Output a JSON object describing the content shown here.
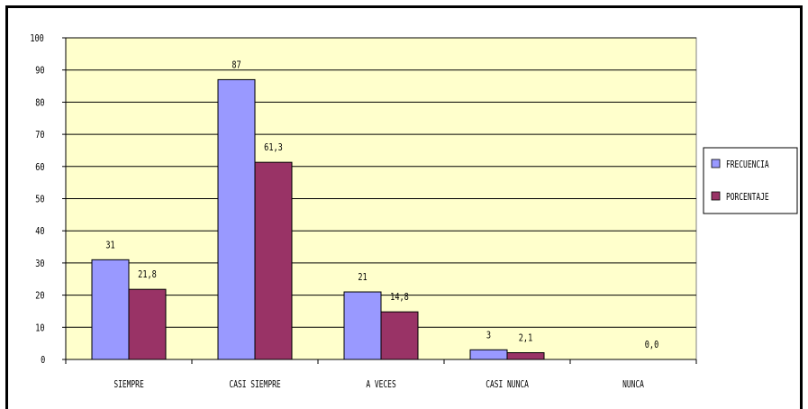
{
  "chart_data": {
    "type": "bar",
    "categories": [
      "SIEMPRE",
      "CASI SIEMPRE",
      "A VECES",
      "CASI NUNCA",
      "NUNCA"
    ],
    "series": [
      {
        "name": "FRECUENCIA",
        "values": [
          31,
          87,
          21,
          3,
          0
        ],
        "labels": [
          "31",
          "87",
          "21",
          "3",
          ""
        ],
        "color": "#9999FF"
      },
      {
        "name": "PORCENTAJE",
        "values": [
          21.8,
          61.3,
          14.8,
          2.1,
          0.0
        ],
        "labels": [
          "21,8",
          "61,3",
          "14,8",
          "2,1",
          "0,0"
        ],
        "color": "#993366"
      }
    ],
    "ylim": [
      0,
      100
    ],
    "yticks": [
      0,
      10,
      20,
      30,
      40,
      50,
      60,
      70,
      80,
      90,
      100
    ],
    "plot_background": "#FFFFCC",
    "grid": true,
    "legend_position": "right",
    "title": "",
    "xlabel": "",
    "ylabel": ""
  }
}
